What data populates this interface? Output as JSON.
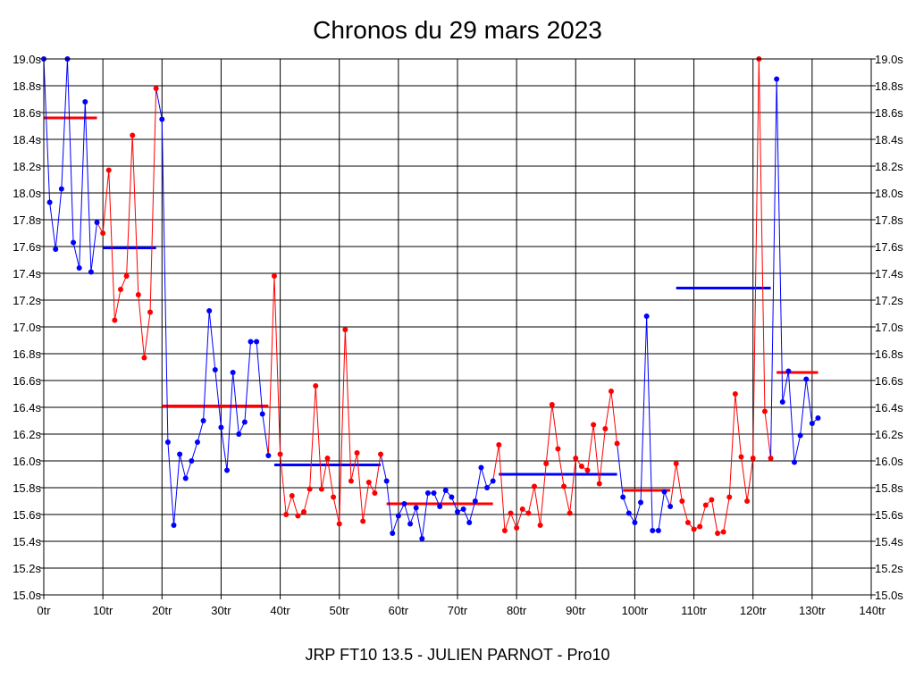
{
  "chart_data": {
    "type": "line",
    "title": "Chronos du 29 mars 2023",
    "footer": "JRP FT10 13.5 - JULIEN PARNOT - Pro10",
    "xlabel": "",
    "ylabel": "",
    "xlim": [
      0,
      140
    ],
    "ylim": [
      15.0,
      19.0
    ],
    "grid": true,
    "x_ticks": [
      {
        "value": 0,
        "label": "0tr"
      },
      {
        "value": 10,
        "label": "10tr"
      },
      {
        "value": 20,
        "label": "20tr"
      },
      {
        "value": 30,
        "label": "30tr"
      },
      {
        "value": 40,
        "label": "40tr"
      },
      {
        "value": 50,
        "label": "50tr"
      },
      {
        "value": 60,
        "label": "60tr"
      },
      {
        "value": 70,
        "label": "70tr"
      },
      {
        "value": 80,
        "label": "80tr"
      },
      {
        "value": 90,
        "label": "90tr"
      },
      {
        "value": 100,
        "label": "100tr"
      },
      {
        "value": 110,
        "label": "110tr"
      },
      {
        "value": 120,
        "label": "120tr"
      },
      {
        "value": 130,
        "label": "130tr"
      },
      {
        "value": 140,
        "label": "140tr"
      }
    ],
    "y_ticks": [
      {
        "value": 15.0,
        "label": "15.0s"
      },
      {
        "value": 15.2,
        "label": "15.2s"
      },
      {
        "value": 15.4,
        "label": "15.4s"
      },
      {
        "value": 15.6,
        "label": "15.6s"
      },
      {
        "value": 15.8,
        "label": "15.8s"
      },
      {
        "value": 16.0,
        "label": "16.0s"
      },
      {
        "value": 16.2,
        "label": "16.2s"
      },
      {
        "value": 16.4,
        "label": "16.4s"
      },
      {
        "value": 16.6,
        "label": "16.6s"
      },
      {
        "value": 16.8,
        "label": "16.8s"
      },
      {
        "value": 17.0,
        "label": "17.0s"
      },
      {
        "value": 17.2,
        "label": "17.2s"
      },
      {
        "value": 17.4,
        "label": "17.4s"
      },
      {
        "value": 17.6,
        "label": "17.6s"
      },
      {
        "value": 17.8,
        "label": "17.8s"
      },
      {
        "value": 18.0,
        "label": "18.0s"
      },
      {
        "value": 18.2,
        "label": "18.2s"
      },
      {
        "value": 18.4,
        "label": "18.4s"
      },
      {
        "value": 18.6,
        "label": "18.6s"
      },
      {
        "value": 18.8,
        "label": "18.8s"
      },
      {
        "value": 19.0,
        "label": "19.0s"
      }
    ],
    "series": [
      {
        "color": "#0000ff",
        "start": 0,
        "values": [
          19.0,
          17.93,
          17.58,
          18.03,
          19.0,
          17.63,
          17.44,
          18.68,
          17.41,
          17.78
        ],
        "average": 18.56
      },
      {
        "color": "#ff0000",
        "start": 10,
        "values": [
          17.7,
          18.17,
          17.05,
          17.28,
          17.38,
          18.43,
          17.24,
          16.77,
          17.11,
          18.78
        ],
        "average": 17.59
      },
      {
        "color": "#0000ff",
        "start": 20,
        "values": [
          18.55,
          16.14,
          15.52,
          16.05,
          15.87,
          16.0,
          16.14,
          16.3,
          17.12,
          16.68,
          16.25,
          15.93,
          16.66,
          16.2,
          16.29,
          16.89,
          16.89,
          16.35,
          16.04
        ],
        "average": 16.41
      },
      {
        "color": "#ff0000",
        "start": 39,
        "values": [
          17.38,
          16.05,
          15.6,
          15.74,
          15.59,
          15.62,
          15.79,
          16.56,
          15.79,
          16.02,
          15.73,
          15.53,
          16.98,
          15.85,
          16.06,
          15.55,
          15.84,
          15.76,
          16.05
        ],
        "average": 15.97
      },
      {
        "color": "#0000ff",
        "start": 58,
        "values": [
          15.85,
          15.46,
          15.59,
          15.68,
          15.53,
          15.65,
          15.42,
          15.76,
          15.76,
          15.66,
          15.78,
          15.73,
          15.62,
          15.64,
          15.54,
          15.7,
          15.95,
          15.8,
          15.85
        ],
        "average": 15.68
      },
      {
        "color": "#ff0000",
        "start": 77,
        "values": [
          16.12,
          15.48,
          15.61,
          15.5,
          15.64,
          15.61,
          15.81,
          15.52,
          15.98,
          16.42,
          16.09,
          15.81,
          15.61,
          16.02,
          15.96,
          15.93,
          16.27,
          15.83,
          16.24,
          16.52,
          16.13
        ],
        "average": 15.9
      },
      {
        "color": "#0000ff",
        "start": 98,
        "values": [
          15.73,
          15.61,
          15.54,
          15.69,
          17.08,
          15.48,
          15.48,
          15.77,
          15.66
        ],
        "average": 15.78
      },
      {
        "color": "#ff0000",
        "start": 107,
        "values": [
          15.98,
          15.7,
          15.54,
          15.49,
          15.51,
          15.67,
          15.71,
          15.46,
          15.47,
          15.73,
          16.5,
          16.03,
          15.7,
          16.02,
          19.0,
          16.37,
          16.02
        ],
        "average": 17.29
      },
      {
        "color": "#0000ff",
        "start": 124,
        "values": [
          18.85,
          16.44,
          16.67,
          15.99,
          16.19,
          16.61,
          16.28,
          16.32
        ],
        "average": 16.66
      }
    ],
    "average_segments": [
      {
        "color": "#ff0000",
        "x": [
          0,
          9
        ],
        "value": 18.56
      },
      {
        "color": "#0000ff",
        "x": [
          10,
          19
        ],
        "value": 17.59
      },
      {
        "color": "#ff0000",
        "x": [
          20,
          38
        ],
        "value": 16.41
      },
      {
        "color": "#0000ff",
        "x": [
          39,
          57
        ],
        "value": 15.97
      },
      {
        "color": "#ff0000",
        "x": [
          58,
          76
        ],
        "value": 15.68
      },
      {
        "color": "#0000ff",
        "x": [
          77,
          97
        ],
        "value": 15.9
      },
      {
        "color": "#ff0000",
        "x": [
          98,
          106
        ],
        "value": 15.78
      },
      {
        "color": "#0000ff",
        "x": [
          107,
          123
        ],
        "value": 17.29
      },
      {
        "color": "#ff0000",
        "x": [
          124,
          131
        ],
        "value": 16.66
      }
    ]
  }
}
